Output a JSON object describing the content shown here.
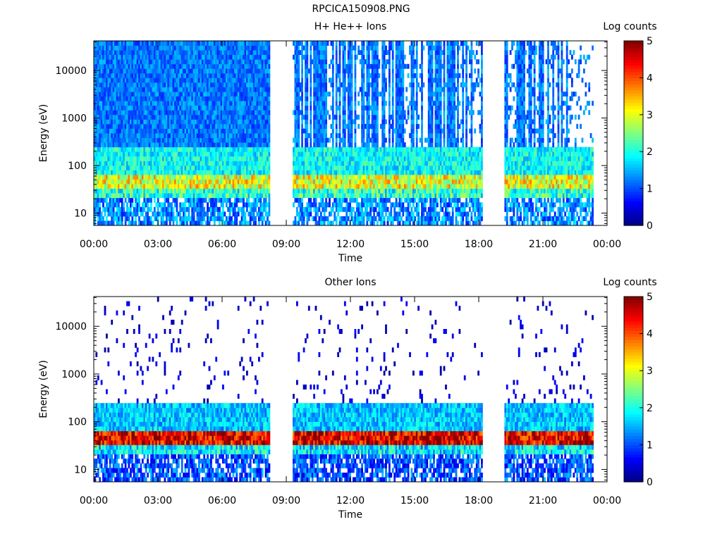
{
  "figure_title": "RPCICA150908.PNG",
  "colors": {
    "colormap": [
      "#00007f",
      "#0000ff",
      "#007fff",
      "#00ffff",
      "#7fff7f",
      "#ffff00",
      "#ff7f00",
      "#ff0000",
      "#7f0000"
    ],
    "axes": "#000000",
    "background": "#ffffff"
  },
  "chart_data": [
    {
      "type": "heatmap",
      "title": "H+ He++ Ions",
      "xlabel": "Time",
      "ylabel": "Energy (eV)",
      "x_ticks": [
        "00:00",
        "03:00",
        "06:00",
        "09:00",
        "12:00",
        "15:00",
        "18:00",
        "21:00",
        "00:00"
      ],
      "x_range_hours": [
        0,
        24
      ],
      "y_ticks": [
        "10",
        "100",
        "1000",
        "10000"
      ],
      "y_scale": "log",
      "y_range": [
        5.5,
        42000
      ],
      "colorbar": {
        "label": "Log counts",
        "ticks": [
          "0",
          "1",
          "2",
          "3",
          "4",
          "5"
        ],
        "range": [
          0,
          5
        ]
      },
      "data_intervals_hours": [
        [
          0,
          8.2
        ],
        [
          9.3,
          18.15
        ],
        [
          19.2,
          23.3
        ]
      ],
      "gaps_hours": [
        [
          8.2,
          9.3
        ],
        [
          18.15,
          19.2
        ],
        [
          23.3,
          24
        ]
      ],
      "bright_band_eV": [
        35,
        70
      ],
      "levels": {
        "band_log_counts": 3,
        "background_log_counts": 1.3,
        "high_energy_log_counts": 1.2
      }
    },
    {
      "type": "heatmap",
      "title": "Other Ions",
      "xlabel": "Time",
      "ylabel": "Energy (eV)",
      "x_ticks": [
        "00:00",
        "03:00",
        "06:00",
        "09:00",
        "12:00",
        "15:00",
        "18:00",
        "21:00",
        "00:00"
      ],
      "x_range_hours": [
        0,
        24
      ],
      "y_ticks": [
        "10",
        "100",
        "1000",
        "10000"
      ],
      "y_scale": "log",
      "y_range": [
        5.5,
        42000
      ],
      "colorbar": {
        "label": "Log counts",
        "ticks": [
          "0",
          "1",
          "2",
          "3",
          "4",
          "5"
        ],
        "range": [
          0,
          5
        ]
      },
      "data_intervals_hours": [
        [
          0,
          8.2
        ],
        [
          9.3,
          18.15
        ],
        [
          19.2,
          23.3
        ]
      ],
      "gaps_hours": [
        [
          8.2,
          9.3
        ],
        [
          18.15,
          19.2
        ],
        [
          23.3,
          24
        ]
      ],
      "bright_band_eV": [
        35,
        70
      ],
      "levels": {
        "band_log_counts": 4.5,
        "background_log_counts": 1.0,
        "high_energy_log_counts": 0.3
      }
    }
  ]
}
